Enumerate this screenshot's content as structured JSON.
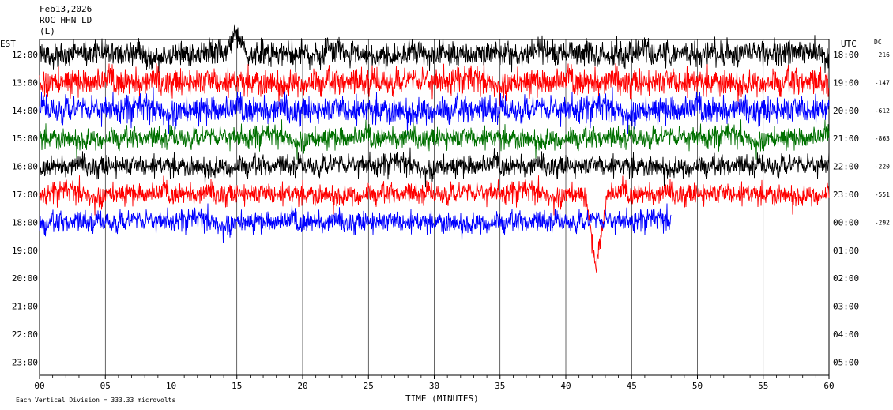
{
  "header": {
    "date": "Feb13,2026",
    "station": "ROC HHN LD",
    "extra": "(L)"
  },
  "left_axis_label": "EST",
  "right_axis_label": "UTC",
  "dc_label": "DC",
  "xlabel": "TIME (MINUTES)",
  "footer": "Each Vertical Division =  333.33 microvolts",
  "chart_data": {
    "type": "line",
    "title": "",
    "xlabel": "TIME (MINUTES)",
    "xlim": [
      0,
      60
    ],
    "x_ticks": [
      "00",
      "05",
      "10",
      "15",
      "20",
      "25",
      "30",
      "35",
      "40",
      "45",
      "50",
      "55",
      "60"
    ],
    "est_labels": [
      "12:00",
      "13:00",
      "14:00",
      "15:00",
      "16:00",
      "17:00",
      "18:00",
      "19:00",
      "20:00",
      "21:00",
      "22:00",
      "23:00"
    ],
    "utc_labels": [
      "18:00",
      "19:00",
      "20:00",
      "21:00",
      "22:00",
      "23:00",
      "00:00",
      "01:00",
      "02:00",
      "03:00",
      "04:00",
      "05:00"
    ],
    "dc_offsets": [
      "216",
      "-147",
      "-612",
      "-863",
      "-220",
      "-551",
      "-292"
    ],
    "trace_colors": [
      "#000000",
      "#ff0000",
      "#0000ff",
      "#007000",
      "#000000",
      "#ff0000",
      "#0000ff"
    ],
    "traces": [
      {
        "row": 0,
        "end_minute": 60
      },
      {
        "row": 1,
        "end_minute": 60
      },
      {
        "row": 2,
        "end_minute": 60
      },
      {
        "row": 3,
        "end_minute": 60
      },
      {
        "row": 4,
        "end_minute": 60
      },
      {
        "row": 5,
        "end_minute": 60
      },
      {
        "row": 6,
        "end_minute": 48
      }
    ],
    "events": [
      {
        "minute": 42.3,
        "row": 5,
        "note": "large downward excursion"
      },
      {
        "minute": 15.0,
        "row": 0,
        "note": "spike"
      }
    ],
    "grid": true
  }
}
